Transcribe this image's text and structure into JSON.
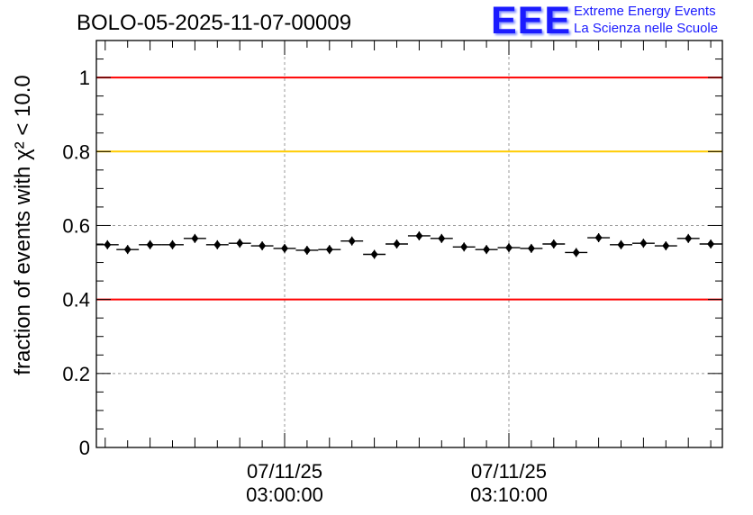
{
  "chart_data": {
    "type": "scatter",
    "title": "BOLO-05-2025-11-07-00009",
    "xlabel": "",
    "ylabel": "fraction of events with χ² < 10.0",
    "ylim": [
      0,
      1.1
    ],
    "yticks": [
      "0",
      "0.2",
      "0.4",
      "0.6",
      "0.8",
      "1"
    ],
    "xtick_labels": [
      {
        "date": "07/11/25",
        "time": "03:00:00"
      },
      {
        "date": "07/11/25",
        "time": "03:10:00"
      }
    ],
    "grid": true,
    "reference_lines": [
      {
        "y": 1.0,
        "color": "#ff0000"
      },
      {
        "y": 0.8,
        "color": "#ffcc00"
      },
      {
        "y": 0.4,
        "color": "#ff0000"
      }
    ],
    "series": [
      {
        "marker": "diamond",
        "color": "#000000",
        "x_minutes": [
          -7.9,
          -7.0,
          -6.0,
          -5.0,
          -4.0,
          -3.0,
          -2.0,
          -1.0,
          0.0,
          1.0,
          2.0,
          3.0,
          4.0,
          5.0,
          6.0,
          7.0,
          8.0,
          9.0,
          10.0,
          11.0,
          12.0,
          13.0,
          14.0,
          15.0,
          16.0,
          17.0,
          18.0,
          19.0
        ],
        "values": [
          0.548,
          0.535,
          0.548,
          0.548,
          0.565,
          0.548,
          0.552,
          0.545,
          0.538,
          0.533,
          0.535,
          0.558,
          0.522,
          0.55,
          0.572,
          0.565,
          0.542,
          0.535,
          0.54,
          0.538,
          0.55,
          0.527,
          0.567,
          0.548,
          0.552,
          0.545,
          0.565,
          0.55
        ]
      }
    ]
  },
  "logo": {
    "letters": "EEE",
    "line1": "Extreme Energy Events",
    "line2": "La Scienza nelle Scuole",
    "color": "#1b1bff"
  }
}
